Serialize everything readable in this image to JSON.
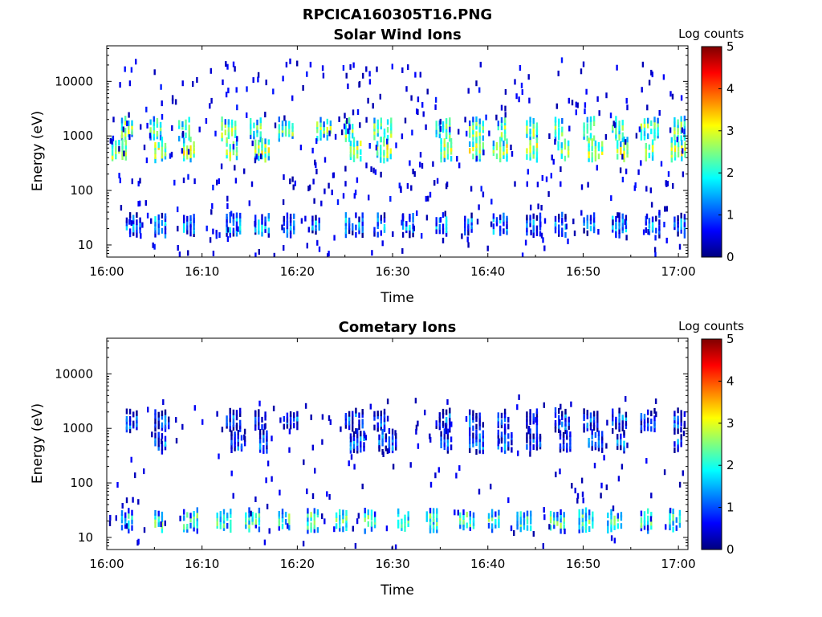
{
  "figure_title": "RPCICA160305T16.PNG",
  "colormap": [
    "#00007f",
    "#0000ff",
    "#007fff",
    "#00ffff",
    "#7fff7f",
    "#ffff00",
    "#ff7f00",
    "#ff0000",
    "#7f0000"
  ],
  "chart_data": [
    {
      "type": "heatmap",
      "title": "Solar Wind Ions",
      "xlabel": "Time",
      "ylabel": "Energy (eV)",
      "x_ticks": [
        "16:00",
        "16:10",
        "16:20",
        "16:30",
        "16:40",
        "16:50",
        "17:00"
      ],
      "xlim_minutes": [
        0,
        61
      ],
      "y_scale": "log",
      "y_ticks": [
        "10",
        "100",
        "1000",
        "10000"
      ],
      "ylim": [
        6,
        45000
      ],
      "colorbar": {
        "label": "Log counts",
        "ticks": [
          "0",
          "1",
          "2",
          "3",
          "4",
          "5"
        ],
        "range": [
          0,
          5
        ]
      },
      "bands": [
        {
          "energy_ev": 1450,
          "log_counts": 2.3,
          "start_minutes": [
            1.5,
            4.5,
            7.5,
            12,
            15,
            18,
            22,
            25,
            28,
            34.5,
            38,
            41,
            44,
            47,
            50,
            53,
            56,
            59.5
          ]
        },
        {
          "energy_ev": 600,
          "log_counts": 2.6,
          "start_minutes": [
            0.5,
            5,
            8,
            12.5,
            15.5,
            25.5,
            28.3,
            35,
            38,
            40.5,
            44,
            47.3,
            50.5,
            53.5,
            56.5,
            59.2
          ]
        },
        {
          "energy_ev": 25,
          "log_counts": 1.2,
          "start_minutes": [
            2,
            5,
            8,
            12.5,
            15.5,
            18.5,
            21.5,
            25,
            28,
            31,
            34.5,
            37.5,
            40.5,
            44,
            47,
            50,
            53,
            56.5,
            59.5
          ]
        }
      ],
      "sparse_hits": {
        "energy_range_ev": [
          6,
          25000
        ],
        "log_counts": 0.6
      }
    },
    {
      "type": "heatmap",
      "title": "Cometary Ions",
      "xlabel": "Time",
      "ylabel": "Energy (eV)",
      "x_ticks": [
        "16:00",
        "16:10",
        "16:20",
        "16:30",
        "16:40",
        "16:50",
        "17:00"
      ],
      "xlim_minutes": [
        0,
        61
      ],
      "y_scale": "log",
      "y_ticks": [
        "10",
        "100",
        "1000",
        "10000"
      ],
      "ylim": [
        6,
        45000
      ],
      "colorbar": {
        "label": "Log counts",
        "ticks": [
          "0",
          "1",
          "2",
          "3",
          "4",
          "5"
        ],
        "range": [
          0,
          5
        ]
      },
      "bands": [
        {
          "energy_ev": 1500,
          "log_counts": 0.8,
          "start_minutes": [
            2,
            5,
            12.5,
            15.5,
            18.5,
            25,
            28,
            34.5,
            38,
            41,
            44,
            47,
            50,
            53,
            56,
            59.5
          ]
        },
        {
          "energy_ev": 620,
          "log_counts": 0.9,
          "start_minutes": [
            5,
            13,
            16,
            25.5,
            28.5,
            35,
            38,
            41,
            44,
            47.5,
            50.5,
            53.5,
            59.5
          ]
        },
        {
          "energy_ev": 22,
          "log_counts": 2.0,
          "start_minutes": [
            1.5,
            5,
            8,
            11.5,
            14.5,
            18,
            21,
            24,
            27,
            30.5,
            33.5,
            37,
            40,
            43,
            46.5,
            49.5,
            52.5,
            56,
            59
          ]
        }
      ],
      "sparse_hits": {
        "energy_range_ev": [
          6,
          4000
        ],
        "log_counts": 0.5
      }
    }
  ]
}
